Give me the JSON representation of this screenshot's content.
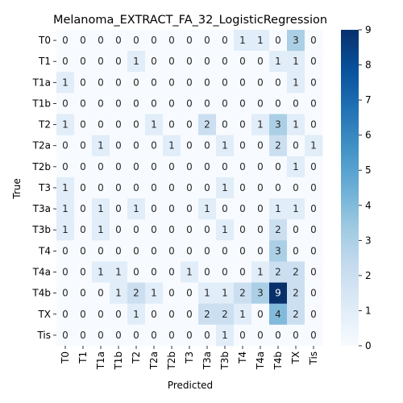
{
  "chart_data": {
    "type": "heatmap",
    "title": "Melanoma_EXTRACT_FA_32_LogisticRegression",
    "xlabel": "Predicted",
    "ylabel": "True",
    "row_labels": [
      "T0",
      "T1",
      "T1a",
      "T1b",
      "T2",
      "T2a",
      "T2b",
      "T3",
      "T3a",
      "T3b",
      "T4",
      "T4a",
      "T4b",
      "TX",
      "Tis"
    ],
    "col_labels": [
      "T0",
      "T1",
      "T1a",
      "T1b",
      "T2",
      "T2a",
      "T2b",
      "T3",
      "T3a",
      "T3b",
      "T4",
      "T4a",
      "T4b",
      "TX",
      "Tis"
    ],
    "values": [
      [
        0,
        0,
        0,
        0,
        0,
        0,
        0,
        0,
        0,
        0,
        1,
        1,
        0,
        3,
        0
      ],
      [
        0,
        0,
        0,
        0,
        1,
        0,
        0,
        0,
        0,
        0,
        0,
        0,
        1,
        1,
        0
      ],
      [
        1,
        0,
        0,
        0,
        0,
        0,
        0,
        0,
        0,
        0,
        0,
        0,
        0,
        1,
        0
      ],
      [
        0,
        0,
        0,
        0,
        0,
        0,
        0,
        0,
        0,
        0,
        0,
        0,
        0,
        0,
        0
      ],
      [
        1,
        0,
        0,
        0,
        0,
        1,
        0,
        0,
        2,
        0,
        0,
        1,
        3,
        1,
        0
      ],
      [
        0,
        0,
        1,
        0,
        0,
        0,
        1,
        0,
        0,
        1,
        0,
        0,
        2,
        0,
        1
      ],
      [
        0,
        0,
        0,
        0,
        0,
        0,
        0,
        0,
        0,
        0,
        0,
        0,
        0,
        1,
        0
      ],
      [
        1,
        0,
        0,
        0,
        0,
        0,
        0,
        0,
        0,
        1,
        0,
        0,
        0,
        0,
        0
      ],
      [
        1,
        0,
        1,
        0,
        1,
        0,
        0,
        0,
        1,
        0,
        0,
        0,
        1,
        1,
        0
      ],
      [
        1,
        0,
        1,
        0,
        0,
        0,
        0,
        0,
        0,
        1,
        0,
        0,
        2,
        0,
        0
      ],
      [
        0,
        0,
        0,
        0,
        0,
        0,
        0,
        0,
        0,
        0,
        0,
        0,
        3,
        0,
        0
      ],
      [
        0,
        0,
        1,
        1,
        0,
        0,
        0,
        1,
        0,
        0,
        0,
        1,
        2,
        2,
        0
      ],
      [
        0,
        0,
        0,
        1,
        2,
        1,
        0,
        0,
        1,
        1,
        2,
        3,
        9,
        2,
        0
      ],
      [
        0,
        0,
        0,
        0,
        1,
        0,
        0,
        0,
        2,
        2,
        1,
        0,
        4,
        2,
        0
      ],
      [
        0,
        0,
        0,
        0,
        0,
        0,
        0,
        0,
        0,
        1,
        0,
        0,
        0,
        0,
        0
      ]
    ],
    "colorbar": {
      "min": 0,
      "max": 9,
      "ticks": [
        0,
        1,
        2,
        3,
        4,
        5,
        6,
        7,
        8,
        9
      ]
    },
    "colormap": "Blues",
    "colors": {
      "low": "#f7fbff",
      "high": "#08306b"
    }
  }
}
